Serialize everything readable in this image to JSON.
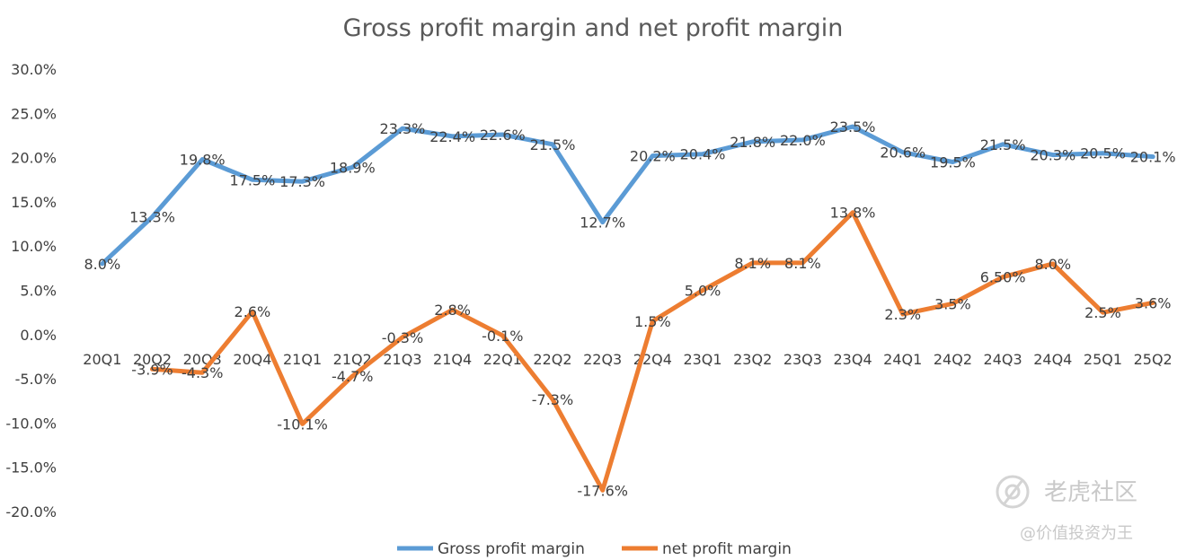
{
  "chart_data": {
    "type": "line",
    "title": "Gross profit margin and net profit margin",
    "categories": [
      "20Q1",
      "20Q2",
      "20Q3",
      "20Q4",
      "21Q1",
      "21Q2",
      "21Q3",
      "21Q4",
      "22Q1",
      "22Q2",
      "22Q3",
      "22Q4",
      "23Q1",
      "23Q2",
      "23Q3",
      "23Q4",
      "24Q1",
      "24Q2",
      "24Q3",
      "24Q4",
      "25Q1",
      "25Q2"
    ],
    "y_ticks": [
      "30.0%",
      "25.0%",
      "20.0%",
      "15.0%",
      "10.0%",
      "5.0%",
      "0.0%",
      "-5.0%",
      "-10.0%",
      "-15.0%",
      "-20.0%"
    ],
    "ylim": [
      -20,
      30
    ],
    "legend_position": "bottom",
    "grid": false,
    "series": [
      {
        "name": "Gross profit margin",
        "color": "#5b9bd5",
        "values": [
          8.0,
          13.3,
          19.8,
          17.5,
          17.3,
          18.9,
          23.3,
          22.4,
          22.6,
          21.5,
          12.7,
          20.2,
          20.4,
          21.8,
          22.0,
          23.5,
          20.6,
          19.5,
          21.5,
          20.3,
          20.5,
          20.1
        ],
        "labels": [
          "8.0%",
          "13.3%",
          "19.8%",
          "17.5%",
          "17.3%",
          "18.9%",
          "23.3%",
          "22.4%",
          "22.6%",
          "21.5%",
          "12.7%",
          "20.2%",
          "20.4%",
          "21.8%",
          "22.0%",
          "23.5%",
          "20.6%",
          "19.5%",
          "21.5%",
          "20.3%",
          "20.5%",
          "20.1%"
        ]
      },
      {
        "name": "net profit margin",
        "color": "#ed7d31",
        "values": [
          null,
          -3.9,
          -4.3,
          2.6,
          -10.1,
          -4.7,
          -0.3,
          2.8,
          -0.1,
          -7.3,
          -17.6,
          1.5,
          5.0,
          8.1,
          8.1,
          13.8,
          2.3,
          3.5,
          6.5,
          8.0,
          2.5,
          3.6
        ],
        "labels": [
          "",
          "-3.9%",
          "-4.3%",
          "2.6%",
          "-10.1%",
          "-4.7%",
          "-0.3%",
          "2.8%",
          "-0.1%",
          "-7.3%",
          "-17.6%",
          "1.5%",
          "5.0%",
          "8.1%",
          "8.1%",
          "13.8%",
          "2.3%",
          "3.5%",
          "6.50%",
          "8.0%",
          "2.5%",
          "3.6%"
        ]
      }
    ]
  },
  "watermark": {
    "brand": "老虎社区",
    "tagline": "@价值投资为王",
    "icon": "tiger-logo-icon"
  }
}
